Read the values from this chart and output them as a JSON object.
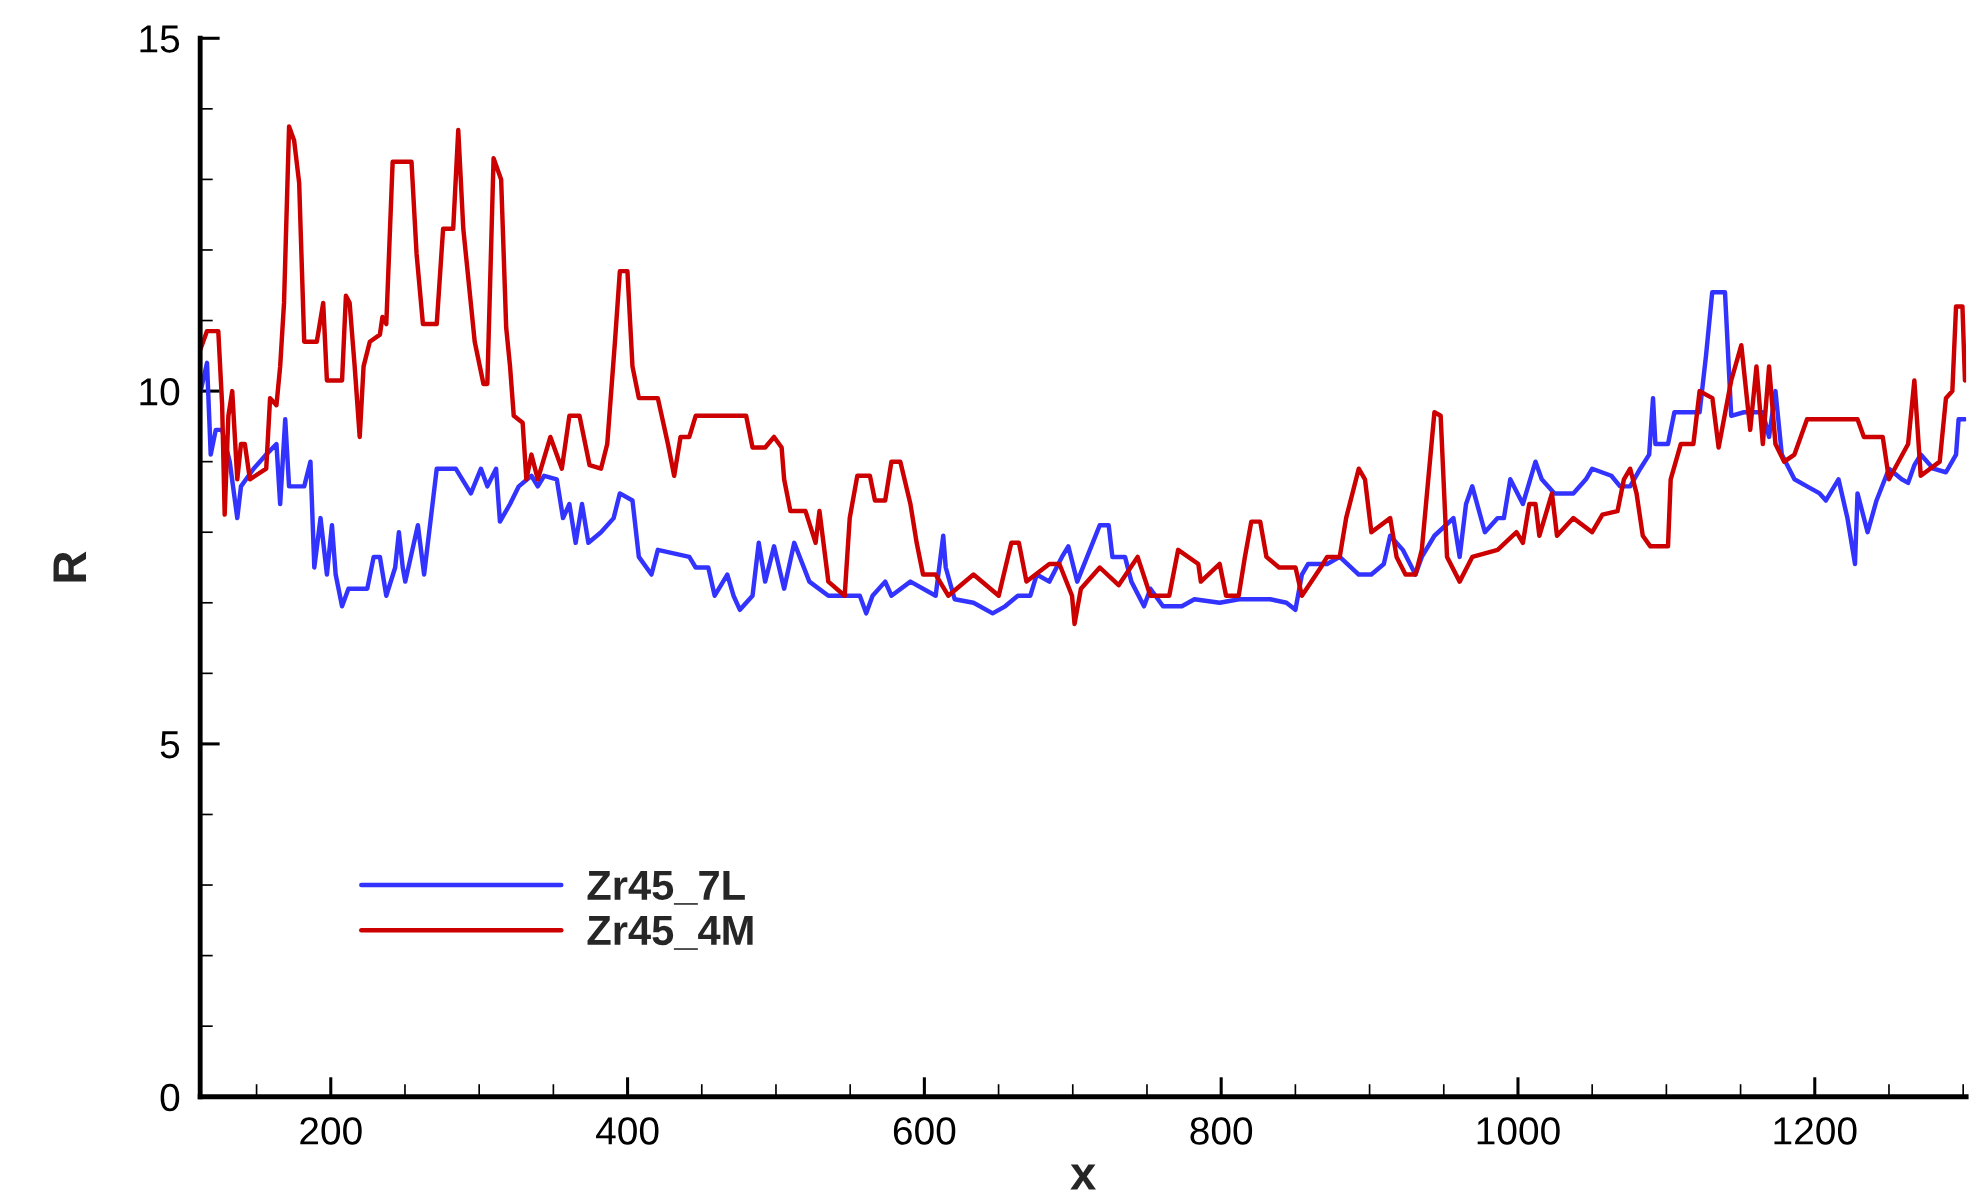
{
  "chart_data": {
    "type": "line",
    "xlabel": "x",
    "ylabel": "R",
    "xlim": [
      112,
      1302
    ],
    "xticks": [
      200,
      400,
      600,
      800,
      1000,
      1200
    ],
    "ylim": [
      0,
      15
    ],
    "yticks": [
      0,
      5,
      10,
      15
    ],
    "grid": false,
    "legend": "bottom left",
    "marker": "none",
    "line_style": "solid",
    "series": [
      {
        "name": "Zr45_7L",
        "color": "#3333ff",
        "x": [
          112.3,
          116.6,
          119.1,
          122.5,
          126.8,
          131.9,
          137,
          139.5,
          148,
          156.5,
          163.4,
          165.9,
          169.3,
          171.9,
          182.1,
          186.3,
          188.9,
          193.1,
          197.4,
          200.8,
          203.3,
          207.6,
          211.9,
          224.6,
          228.9,
          233.1,
          237.4,
          243.4,
          245.9,
          248.5,
          250.2,
          258.7,
          262.9,
          271.4,
          284.2,
          294.4,
          301.2,
          305.5,
          311.4,
          314,
          320.8,
          326.7,
          335.2,
          339.5,
          343.8,
          352.3,
          356.5,
          360.8,
          365,
          369.3,
          373.6,
          382.1,
          390.6,
          394.8,
          403.3,
          407.6,
          416.1,
          420.4,
          441.6,
          445.9,
          454.4,
          458.7,
          467.2,
          471.4,
          475.7,
          484.2,
          488.4,
          492.7,
          498.7,
          505.5,
          512.3,
          522.5,
          535.3,
          556.5,
          560.8,
          565.1,
          573.6,
          577.8,
          590.6,
          607.6,
          612.7,
          614.4,
          620.4,
          633.1,
          646,
          654.4,
          663,
          671.4,
          675.7,
          684.2,
          692.7,
          697,
          703,
          718.2,
          724.2,
          726.7,
          735.2,
          739.5,
          748,
          752.3,
          760.8,
          773.5,
          782,
          799,
          812,
          833,
          844,
          850,
          854.4,
          858.6,
          871.4,
          879.9,
          892.7,
          901.2,
          909.6,
          913.9,
          922.4,
          930.9,
          935.2,
          943.7,
          956.5,
          960.7,
          965,
          969.2,
          977.7,
          986.3,
          990.5,
          994.8,
          1003.3,
          1011.8,
          1016,
          1024.6,
          1037.3,
          1045.8,
          1050,
          1062.9,
          1068.8,
          1075.6,
          1082.4,
          1088.4,
          1091,
          1092.6,
          1101.1,
          1105.4,
          1122.4,
          1126.7,
          1130.9,
          1139.5,
          1143.7,
          1152.2,
          1165,
          1169.2,
          1173.5,
          1177.8,
          1186.3,
          1194.8,
          1203.3,
          1207.5,
          1216,
          1222,
          1227.1,
          1228.8,
          1235.6,
          1241.6,
          1250,
          1258.6,
          1262.9,
          1267.1,
          1271.4,
          1279.9,
          1288.4,
          1295.2,
          1296.9,
          1301.2
        ],
        "values": [
          10.0,
          10.4,
          9.1,
          9.45,
          9.45,
          9.0,
          8.2,
          8.65,
          8.9,
          9.1,
          9.25,
          8.4,
          9.6,
          8.65,
          8.65,
          9.0,
          7.5,
          8.2,
          7.4,
          8.1,
          7.4,
          6.95,
          7.2,
          7.2,
          7.65,
          7.65,
          7.1,
          7.5,
          8.0,
          7.5,
          7.3,
          8.1,
          7.4,
          8.9,
          8.9,
          8.55,
          8.9,
          8.65,
          8.9,
          8.15,
          8.4,
          8.65,
          8.8,
          8.65,
          8.8,
          8.75,
          8.2,
          8.4,
          7.85,
          8.4,
          7.85,
          8.0,
          8.2,
          8.55,
          8.45,
          7.65,
          7.4,
          7.75,
          7.65,
          7.5,
          7.5,
          7.1,
          7.4,
          7.1,
          6.9,
          7.1,
          7.85,
          7.3,
          7.8,
          7.2,
          7.85,
          7.3,
          7.1,
          7.1,
          6.85,
          7.1,
          7.3,
          7.1,
          7.3,
          7.1,
          7.95,
          7.5,
          7.05,
          7.0,
          6.85,
          6.95,
          7.1,
          7.1,
          7.4,
          7.3,
          7.65,
          7.8,
          7.3,
          8.1,
          8.1,
          7.65,
          7.65,
          7.3,
          6.95,
          7.2,
          6.95,
          6.95,
          7.05,
          7.0,
          7.05,
          7.05,
          7.0,
          6.9,
          7.4,
          7.55,
          7.55,
          7.65,
          7.4,
          7.4,
          7.55,
          7.95,
          7.75,
          7.4,
          7.65,
          7.95,
          8.2,
          7.65,
          8.4,
          8.65,
          8.0,
          8.2,
          8.2,
          8.75,
          8.4,
          9.0,
          8.75,
          8.55,
          8.55,
          8.75,
          8.9,
          8.8,
          8.65,
          8.65,
          8.9,
          9.1,
          9.9,
          9.25,
          9.25,
          9.7,
          9.7,
          10.5,
          11.4,
          11.4,
          9.65,
          9.7,
          9.7,
          9.35,
          10.0,
          9.1,
          8.75,
          8.65,
          8.55,
          8.45,
          8.75,
          8.2,
          7.55,
          8.55,
          8.0,
          8.45,
          8.9,
          8.75,
          8.7,
          8.95,
          9.1,
          8.9,
          8.85,
          9.1,
          9.6,
          9.6
        ]
      },
      {
        "name": "Zr45_4M",
        "color": "#cc0000",
        "x": [
          112.3,
          116.6,
          124.2,
          126.8,
          128.5,
          131,
          133.6,
          137,
          139.5,
          142.1,
          145.5,
          156.5,
          159.1,
          163.4,
          165.9,
          168.5,
          171.9,
          175.3,
          178.7,
          182.1,
          190.6,
          194.9,
          197.4,
          207.6,
          210.2,
          212.7,
          216.1,
          219.5,
          222.1,
          226.3,
          233.1,
          234.8,
          237.4,
          241.7,
          254.4,
          257.8,
          262.1,
          271.4,
          275.7,
          282.5,
          285.9,
          289.3,
          297,
          302.9,
          305.5,
          309.7,
          314.8,
          318.2,
          320.8,
          323.3,
          329.3,
          331.8,
          335.2,
          339.5,
          348,
          355.7,
          360.8,
          367.6,
          374.4,
          382.1,
          386.3,
          391.5,
          394.8,
          399.9,
          403.3,
          407.6,
          420.4,
          427.2,
          431.4,
          435.7,
          441.6,
          445.9,
          479.9,
          484.2,
          492.7,
          498.7,
          503.8,
          505.5,
          509.7,
          519.9,
          526.7,
          529.3,
          535.3,
          546.3,
          549.7,
          554.8,
          563.3,
          566.7,
          573.6,
          577.8,
          583.8,
          590.6,
          594.8,
          599.1,
          607.6,
          616.1,
          633.1,
          650.1,
          658.6,
          663.7,
          668.8,
          684.2,
          691,
          699.5,
          701.2,
          705.5,
          718.2,
          730.9,
          743.7,
          752.3,
          765,
          771,
          784.6,
          786.3,
          799,
          803.3,
          811.8,
          816,
          820.3,
          826.3,
          830.5,
          839,
          850.1,
          854.4,
          867.1,
          871.4,
          879.9,
          884.2,
          892.7,
          896.9,
          901.2,
          913.9,
          918.2,
          924.2,
          931,
          935.2,
          943.7,
          947.9,
          952.2,
          960.7,
          969.2,
          986.3,
          999,
          1003.3,
          1007.6,
          1011.8,
          1014.4,
          1022.9,
          1026.3,
          1037.3,
          1050,
          1056.9,
          1067.1,
          1071.4,
          1075.6,
          1079.9,
          1084.1,
          1089.2,
          1101.1,
          1102.9,
          1109.7,
          1118.2,
          1122.4,
          1131,
          1135.2,
          1143.7,
          1150.5,
          1156.5,
          1160.7,
          1165,
          1169.2,
          1173.5,
          1179.4,
          1186.3,
          1194.8,
          1228.8,
          1233.1,
          1245.8,
          1250,
          1262.9,
          1267.1,
          1271.4,
          1284.2,
          1288.4,
          1292.7,
          1295.2,
          1299.5,
          1301.2
        ],
        "values": [
          10.6,
          10.85,
          10.85,
          9.8,
          8.25,
          9.65,
          10.0,
          8.75,
          9.25,
          9.25,
          8.75,
          8.9,
          9.9,
          9.8,
          10.35,
          11.25,
          13.75,
          13.55,
          12.95,
          10.7,
          10.7,
          11.25,
          10.15,
          10.15,
          11.35,
          11.25,
          10.35,
          9.35,
          10.35,
          10.7,
          10.8,
          11.05,
          10.95,
          13.25,
          13.25,
          11.95,
          10.95,
          10.95,
          12.3,
          12.3,
          13.7,
          12.3,
          10.7,
          10.1,
          10.1,
          13.3,
          13.0,
          10.9,
          10.35,
          9.65,
          9.55,
          8.75,
          9.1,
          8.75,
          9.35,
          8.9,
          9.65,
          9.65,
          8.95,
          8.9,
          9.25,
          10.7,
          11.7,
          11.7,
          10.35,
          9.9,
          9.9,
          9.25,
          8.8,
          9.35,
          9.35,
          9.65,
          9.65,
          9.2,
          9.2,
          9.35,
          9.2,
          8.75,
          8.3,
          8.3,
          7.85,
          8.3,
          7.3,
          7.1,
          8.2,
          8.8,
          8.8,
          8.45,
          8.45,
          9.0,
          9.0,
          8.4,
          7.85,
          7.4,
          7.4,
          7.1,
          7.4,
          7.1,
          7.85,
          7.85,
          7.3,
          7.55,
          7.55,
          7.1,
          6.7,
          7.2,
          7.5,
          7.25,
          7.65,
          7.1,
          7.1,
          7.75,
          7.55,
          7.3,
          7.55,
          7.1,
          7.1,
          7.65,
          8.15,
          8.15,
          7.65,
          7.5,
          7.5,
          7.1,
          7.5,
          7.65,
          7.65,
          8.2,
          8.9,
          8.75,
          8.0,
          8.2,
          7.65,
          7.4,
          7.4,
          7.75,
          9.7,
          9.65,
          7.65,
          7.3,
          7.65,
          7.75,
          8.0,
          7.85,
          8.4,
          8.4,
          7.95,
          8.55,
          7.95,
          8.2,
          8.0,
          8.25,
          8.3,
          8.75,
          8.9,
          8.55,
          7.95,
          7.8,
          7.8,
          8.75,
          9.25,
          9.25,
          10.0,
          9.9,
          9.2,
          10.15,
          10.65,
          9.45,
          10.35,
          9.25,
          10.35,
          9.25,
          9.0,
          9.1,
          9.6,
          9.6,
          9.35,
          9.35,
          8.75,
          9.25,
          10.15,
          8.8,
          9.0,
          9.9,
          10.0,
          11.2,
          11.2,
          10.15
        ]
      }
    ]
  }
}
